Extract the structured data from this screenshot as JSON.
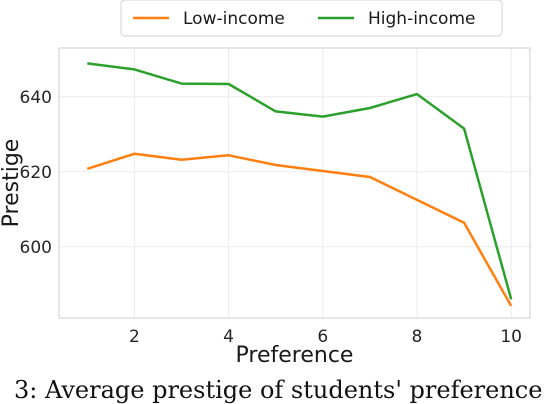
{
  "chart_data": {
    "type": "line",
    "xlabel": "Preference",
    "ylabel": "Prestige",
    "x": [
      1,
      2,
      3,
      4,
      5,
      6,
      7,
      8,
      9,
      10
    ],
    "xticks": [
      2,
      4,
      6,
      8,
      10
    ],
    "yticks": [
      600,
      620,
      640
    ],
    "xlim": [
      0.4,
      10.4
    ],
    "ylim": [
      581,
      653
    ],
    "grid": true,
    "legend_position": "top-center",
    "series": [
      {
        "name": "Low-income",
        "color": "#ff7f0e",
        "values": [
          620.8,
          624.8,
          623.2,
          624.4,
          621.8,
          620.2,
          618.6,
          612.5,
          606.4,
          584.2
        ]
      },
      {
        "name": "High-income",
        "color": "#2ca02c",
        "values": [
          648.9,
          647.3,
          643.5,
          643.4,
          636.1,
          634.7,
          637.0,
          640.7,
          631.5,
          586.0
        ]
      }
    ]
  },
  "caption": "3: Average prestige of students' preference"
}
